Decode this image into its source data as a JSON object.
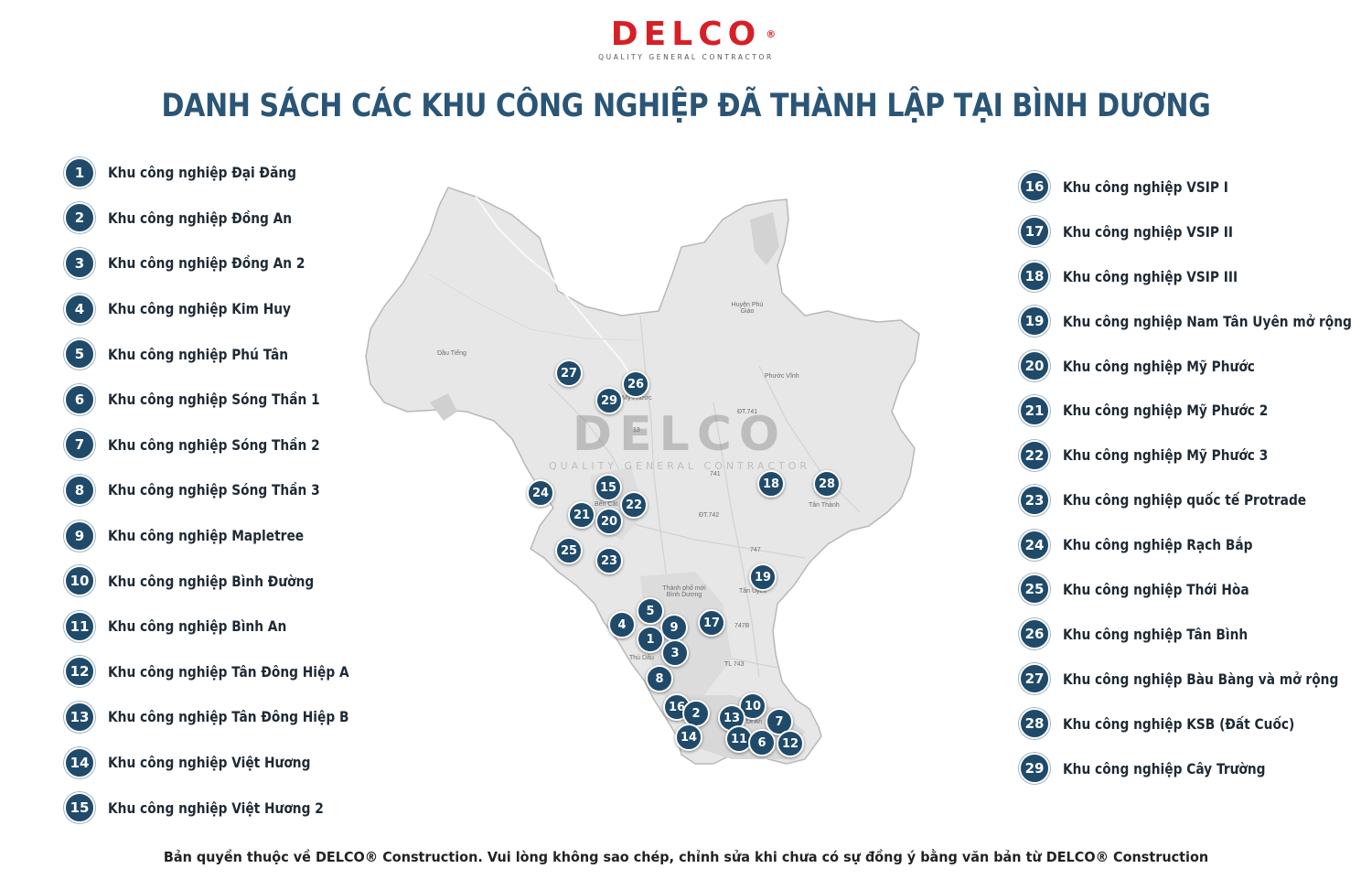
{
  "header": {
    "logo_text": "DELCO",
    "logo_reg": "®",
    "logo_tagline": "QUALITY GENERAL CONTRACTOR",
    "title": "DANH SÁCH CÁC KHU CÔNG NGHIỆP ĐÃ THÀNH LẬP TẠI BÌNH DƯƠNG"
  },
  "zones": [
    {
      "num": "1",
      "name": "Khu công nghiệp Đại Đăng"
    },
    {
      "num": "2",
      "name": "Khu công nghiệp Đồng An"
    },
    {
      "num": "3",
      "name": "Khu công nghiệp Đồng An 2"
    },
    {
      "num": "4",
      "name": "Khu công nghiệp Kim Huy"
    },
    {
      "num": "5",
      "name": "Khu công nghiệp Phú Tân"
    },
    {
      "num": "6",
      "name": "Khu công nghiệp Sóng Thần 1"
    },
    {
      "num": "7",
      "name": "Khu công nghiệp Sóng Thần 2"
    },
    {
      "num": "8",
      "name": "Khu công nghiệp Sóng Thần 3"
    },
    {
      "num": "9",
      "name": "Khu công nghiệp Mapletree"
    },
    {
      "num": "10",
      "name": "Khu công nghiệp Bình Đường"
    },
    {
      "num": "11",
      "name": "Khu công nghiệp Bình An"
    },
    {
      "num": "12",
      "name": "Khu công nghiệp Tân Đông Hiệp A"
    },
    {
      "num": "13",
      "name": "Khu công nghiệp Tân Đông Hiệp B"
    },
    {
      "num": "14",
      "name": "Khu công nghiệp Việt Hương"
    },
    {
      "num": "15",
      "name": "Khu công nghiệp Việt Hương 2"
    },
    {
      "num": "16",
      "name": "Khu công nghiệp VSIP I"
    },
    {
      "num": "17",
      "name": "Khu công nghiệp VSIP II"
    },
    {
      "num": "18",
      "name": "Khu công nghiệp VSIP III"
    },
    {
      "num": "19",
      "name": "Khu công nghiệp Nam Tân Uyên mở rộng"
    },
    {
      "num": "20",
      "name": "Khu công nghiệp Mỹ Phước"
    },
    {
      "num": "21",
      "name": "Khu công nghiệp Mỹ Phước 2"
    },
    {
      "num": "22",
      "name": "Khu công nghiệp Mỹ Phước 3"
    },
    {
      "num": "23",
      "name": "Khu công nghiệp quốc tế Protrade"
    },
    {
      "num": "24",
      "name": "Khu công nghiệp Rạch Bắp"
    },
    {
      "num": "25",
      "name": "Khu công nghiệp Thới Hòa"
    },
    {
      "num": "26",
      "name": "Khu công nghiệp Tân Bình"
    },
    {
      "num": "27",
      "name": "Khu công nghiệp Bàu Bàng và mở rộng"
    },
    {
      "num": "28",
      "name": "Khu công nghiệp KSB (Đất Cuốc)"
    },
    {
      "num": "29",
      "name": "Khu công nghiệp Cây Trường"
    }
  ],
  "map": {
    "watermark_text": "DELCO",
    "watermark_tagline": "QUALITY GENERAL CONTRACTOR",
    "labels": [
      "Dầu Tiếng",
      "Phước Vĩnh",
      "Huyện Phú Giáo",
      "ĐT.741",
      "741",
      "Bến Cát",
      "ĐT.742",
      "747",
      "Tân Thành",
      "Thành phố mới Bình Dương",
      "Tân Uyên",
      "747B",
      "TL 743",
      "Thủ Dầu",
      "Dĩ An",
      "13",
      "Mỹ Phước"
    ],
    "pins": [
      "27",
      "26",
      "29",
      "24",
      "15",
      "22",
      "21",
      "20",
      "25",
      "23",
      "18",
      "28",
      "19",
      "5",
      "4",
      "9",
      "1",
      "17",
      "3",
      "8",
      "16",
      "2",
      "10",
      "13",
      "7",
      "14",
      "11",
      "6",
      "12"
    ]
  },
  "footer": {
    "copyright": "Bản quyền thuộc về DELCO® Construction. Vui lòng không sao chép, chỉnh sửa khi chưa có sự đồng ý bằng văn bản từ DELCO® Construction"
  },
  "colors": {
    "brand_red": "#d71f26",
    "title_blue": "#2a5576",
    "badge_navy": "#204a69"
  }
}
